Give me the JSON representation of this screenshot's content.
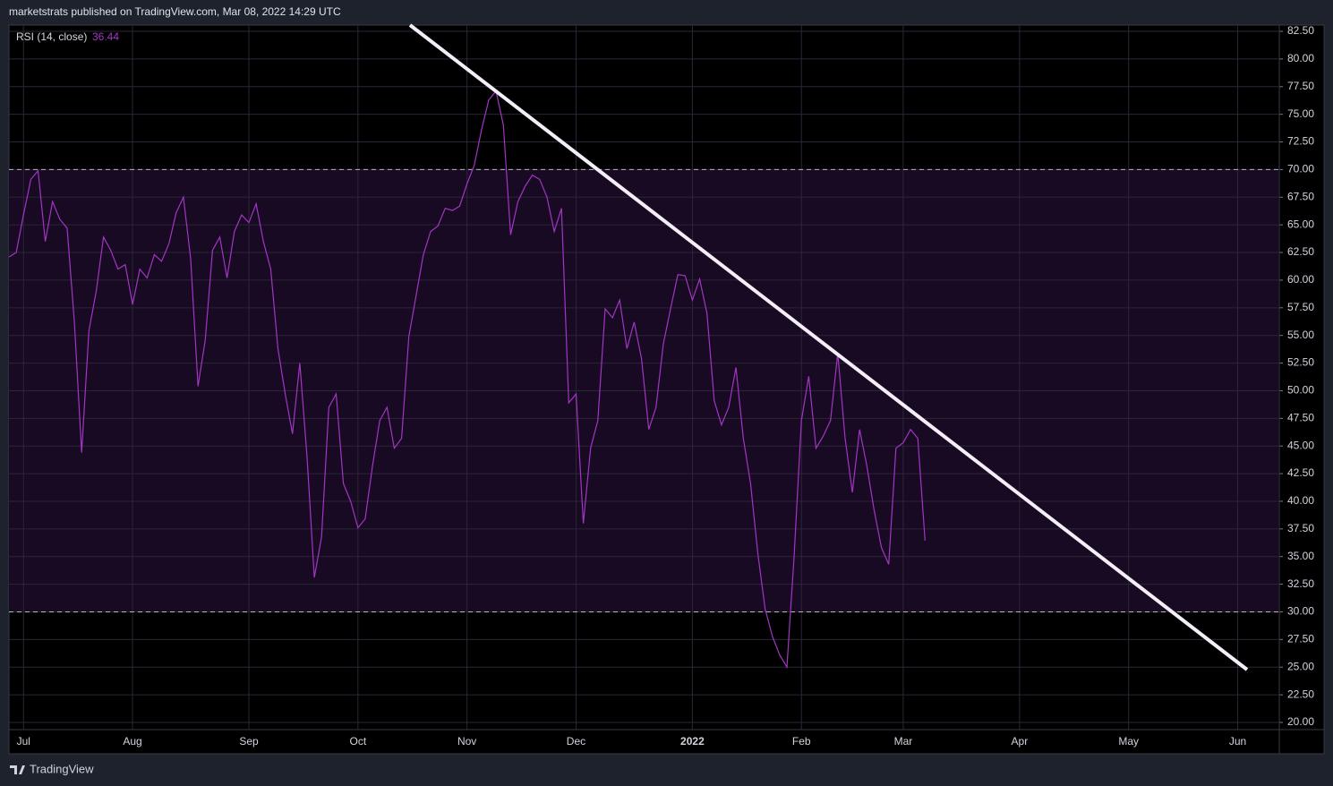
{
  "header": "marketstrats published on TradingView.com, Mar 08, 2022 14:29 UTC",
  "footer": "TradingView",
  "chart_data": {
    "type": "line",
    "last_value": 36.44,
    "upper_band": 70,
    "lower_band": 30,
    "categories": [
      null,
      null,
      "Jul",
      null,
      null,
      null,
      null,
      null,
      null,
      null,
      null,
      null,
      null,
      null,
      null,
      null,
      null,
      "Aug",
      null,
      null,
      null,
      null,
      null,
      null,
      null,
      null,
      null,
      null,
      null,
      null,
      null,
      null,
      null,
      "Sep",
      null,
      null,
      null,
      null,
      null,
      null,
      null,
      null,
      null,
      null,
      null,
      null,
      null,
      null,
      "Oct",
      null,
      null,
      null,
      null,
      null,
      null,
      null,
      null,
      null,
      null,
      null,
      null,
      null,
      null,
      "Nov",
      null,
      null,
      null,
      null,
      null,
      null,
      null,
      null,
      null,
      null,
      null,
      null,
      null,
      null,
      "Dec",
      null,
      null,
      null,
      null,
      null,
      null,
      null,
      null,
      null,
      null,
      null,
      null,
      null,
      null,
      null,
      "2022",
      null,
      null,
      null,
      null,
      null,
      null,
      null,
      null,
      null,
      null,
      null,
      null,
      null,
      null,
      "Feb",
      null,
      null,
      null,
      null,
      null,
      null,
      null,
      null,
      null,
      null,
      null,
      null,
      null,
      "Mar",
      null,
      null,
      null,
      null,
      null,
      null,
      null,
      null,
      null,
      null,
      null,
      null,
      null,
      null,
      null,
      "Apr",
      null,
      null,
      null,
      null,
      null,
      null,
      null,
      null,
      null,
      null,
      null,
      null,
      null,
      null,
      "May",
      null,
      null,
      null,
      null,
      null,
      null,
      null,
      null,
      null,
      null,
      null,
      null,
      null,
      null,
      "Jun",
      null,
      null,
      null,
      null
    ],
    "series": [
      {
        "name": "RSI (14, close)",
        "color": "#a335c4",
        "values": [
          62.1,
          62.5,
          65.9,
          69.1,
          69.9,
          63.5,
          67.1,
          65.5,
          64.7,
          56.2,
          44.4,
          55.4,
          59.0,
          63.9,
          62.7,
          61.0,
          61.4,
          57.8,
          61.0,
          60.2,
          62.3,
          61.7,
          63.3,
          66.1,
          67.5,
          61.9,
          50.4,
          54.6,
          62.7,
          63.9,
          60.2,
          64.4,
          65.9,
          65.2,
          66.9,
          63.5,
          61.0,
          53.8,
          49.7,
          46.1,
          52.5,
          44.0,
          33.1,
          36.8,
          48.5,
          49.7,
          41.6,
          40.0,
          37.6,
          38.4,
          43.2,
          47.3,
          48.5,
          44.8,
          45.7,
          54.9,
          58.6,
          62.3,
          64.4,
          64.9,
          66.5,
          66.3,
          66.7,
          68.7,
          70.4,
          73.6,
          76.3,
          77.1,
          74.0,
          64.1,
          67.1,
          68.5,
          69.5,
          69.1,
          67.5,
          64.4,
          66.5,
          48.9,
          49.7,
          38.0,
          44.8,
          47.3,
          57.4,
          56.6,
          58.2,
          53.8,
          56.2,
          52.9,
          46.5,
          48.5,
          54.2,
          57.4,
          60.5,
          60.4,
          58.2,
          60.1,
          57.0,
          49.1,
          46.9,
          48.5,
          52.1,
          45.7,
          41.6,
          35.3,
          30.3,
          27.8,
          26.1,
          25.0,
          35.1,
          47.3,
          51.3,
          44.8,
          45.9,
          47.3,
          53.4,
          45.7,
          40.8,
          46.5,
          43.2,
          39.2,
          35.8,
          34.3,
          44.8,
          45.3,
          46.5,
          45.7,
          36.44,
          null,
          null,
          null,
          null,
          null,
          null,
          null,
          null,
          null,
          null,
          null,
          null,
          null,
          null,
          null,
          null,
          null,
          null,
          null,
          null,
          null,
          null,
          null,
          null,
          null,
          null,
          null,
          null,
          null,
          null,
          null,
          null,
          null,
          null,
          null,
          null,
          null,
          null,
          null,
          null,
          null,
          null,
          null,
          null,
          null,
          null,
          null
        ]
      }
    ],
    "ylim": [
      19.35,
      83.07
    ],
    "yticks": [
      {
        "value": 20,
        "label": "20.00"
      },
      {
        "value": 22.5,
        "label": "22.50"
      },
      {
        "value": 25,
        "label": "25.00"
      },
      {
        "value": 27.5,
        "label": "27.50"
      },
      {
        "value": 30,
        "label": "30.00"
      },
      {
        "value": 32.5,
        "label": "32.50"
      },
      {
        "value": 35,
        "label": "35.00"
      },
      {
        "value": 37.5,
        "label": "37.50"
      },
      {
        "value": 40,
        "label": "40.00"
      },
      {
        "value": 42.5,
        "label": "42.50"
      },
      {
        "value": 45,
        "label": "45.00"
      },
      {
        "value": 47.5,
        "label": "47.50"
      },
      {
        "value": 50,
        "label": "50.00"
      },
      {
        "value": 52.5,
        "label": "52.50"
      },
      {
        "value": 55,
        "label": "55.00"
      },
      {
        "value": 57.5,
        "label": "57.50"
      },
      {
        "value": 60,
        "label": "60.00"
      },
      {
        "value": 62.5,
        "label": "62.50"
      },
      {
        "value": 65,
        "label": "65.00"
      },
      {
        "value": 67.5,
        "label": "67.50"
      },
      {
        "value": 70,
        "label": "70.00"
      },
      {
        "value": 72.5,
        "label": "72.50"
      },
      {
        "value": 75,
        "label": "75.00"
      },
      {
        "value": 77.5,
        "label": "77.50"
      },
      {
        "value": 80,
        "label": "80.00"
      },
      {
        "value": 82.5,
        "label": "82.50"
      }
    ],
    "grid": true,
    "band_color": "#170a22"
  }
}
